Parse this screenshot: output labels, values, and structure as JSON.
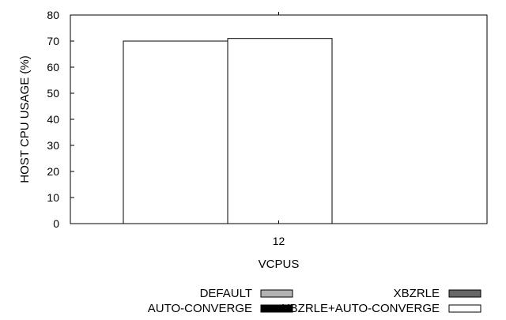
{
  "chart_data": {
    "type": "bar",
    "title": "",
    "xlabel": "VCPUS",
    "ylabel": "HOST CPU USAGE (%)",
    "ylim": [
      0,
      80
    ],
    "yticks": [
      0,
      10,
      20,
      30,
      40,
      50,
      60,
      70,
      80
    ],
    "categories": [
      "12"
    ],
    "grid": false,
    "legend_position": "bottom-right",
    "series": [
      {
        "name": "DEFAULT",
        "values": [
          70
        ],
        "color": "#b3b3b3"
      },
      {
        "name": "XBZRLE",
        "values": [
          71
        ],
        "color": "#666666"
      },
      {
        "name": "AUTO-CONVERGE",
        "values": [
          0
        ],
        "color": "#000000"
      },
      {
        "name": "XBZRLE+AUTO-CONVERGE",
        "values": [
          0
        ],
        "color": "#ffffff"
      }
    ]
  }
}
